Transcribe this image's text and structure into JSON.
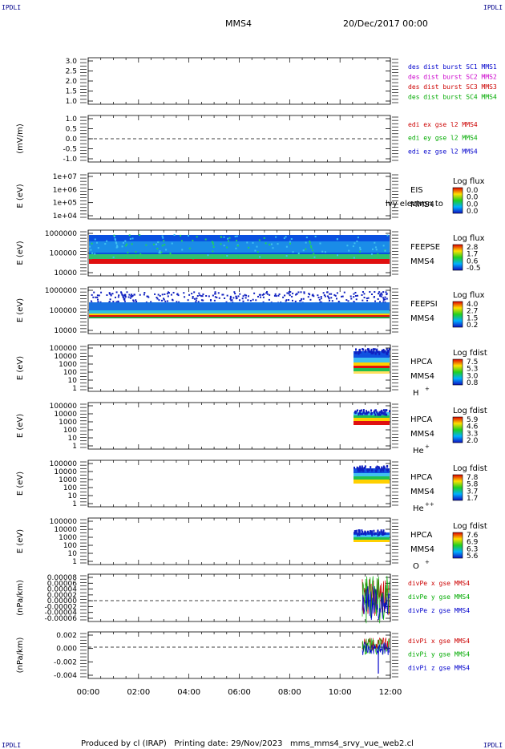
{
  "corner_label": "IPDLI",
  "header": {
    "spacecraft": "MMS4",
    "date": "20/Dec/2017 00:00"
  },
  "footer": {
    "text": "Produced by cl (IRAP)   Printing date: 29/Nov/2023   mms_mms4_srvy_vue_web2.cl"
  },
  "x_axis": {
    "ticks": [
      "00:00",
      "02:00",
      "04:00",
      "06:00",
      "08:00",
      "10:00",
      "12:00"
    ]
  },
  "chart_data": [
    {
      "type": "line",
      "id": "dist",
      "yticks": [
        "3.0",
        "2.5",
        "2.0",
        "1.5",
        "1.0"
      ],
      "legend": [
        {
          "text": "des dist burst SC1 MMS1",
          "color": "#0000cc"
        },
        {
          "text": "des dist burst SC2 MMS2",
          "color": "#cc00cc"
        },
        {
          "text": "des dist burst SC3 MMS3",
          "color": "#cc0000"
        },
        {
          "text": "des dist burst SC4 MMS4",
          "color": "#00aa00"
        }
      ]
    },
    {
      "type": "line",
      "id": "edi",
      "ylabel": "(mV/m)",
      "yticks": [
        "1.0",
        "0.5",
        "0.0",
        "-0.5",
        "-1.0"
      ],
      "legend": [
        {
          "text": "edi ex gse l2 MMS4",
          "color": "#cc0000"
        },
        {
          "text": "edi ey gse l2 MMS4",
          "color": "#00aa00"
        },
        {
          "text": "edi ez gse l2 MMS4",
          "color": "#0000cc"
        }
      ]
    },
    {
      "type": "heatmap",
      "id": "eis",
      "ylabel": "E (eV)",
      "yticks": [
        "1e+07",
        "1e+06",
        "1e+05",
        "1e+04"
      ],
      "instrument": "EIS",
      "overlay": "lvy electron to",
      "sc": "MMS4",
      "cbar_title": "Log flux",
      "cbar_ticks": [
        "0.0",
        "0.0",
        "0.0",
        "0.0"
      ]
    },
    {
      "type": "heatmap",
      "id": "feepse",
      "ylabel": "E (eV)",
      "yticks": [
        "1000000",
        "100000",
        "10000"
      ],
      "instrument": "FEEPSE",
      "sc": "MMS4",
      "cbar_title": "Log flux",
      "cbar_ticks": [
        "2.8",
        "1.7",
        "0.6",
        "-0.5"
      ]
    },
    {
      "type": "heatmap",
      "id": "feepsi",
      "ylabel": "E (eV)",
      "yticks": [
        "1000000",
        "100000",
        "10000"
      ],
      "instrument": "FEEPSI",
      "sc": "MMS4",
      "cbar_title": "Log flux",
      "cbar_ticks": [
        "4.0",
        "2.7",
        "1.5",
        "0.2"
      ]
    },
    {
      "type": "heatmap",
      "id": "hpca_h",
      "ylabel": "E (eV)",
      "yticks": [
        "100000",
        "10000",
        "1000",
        "100",
        "10",
        "1"
      ],
      "instrument": "HPCA",
      "sc": "MMS4",
      "species": "H",
      "charge": "+",
      "cbar_title": "Log fdist",
      "cbar_ticks": [
        "7.5",
        "5.3",
        "3.0",
        "0.8"
      ]
    },
    {
      "type": "heatmap",
      "id": "hpca_he",
      "ylabel": "E (eV)",
      "yticks": [
        "100000",
        "10000",
        "1000",
        "100",
        "10",
        "1"
      ],
      "instrument": "HPCA",
      "sc": "MMS4",
      "species": "He",
      "charge": "+",
      "cbar_title": "Log fdist",
      "cbar_ticks": [
        "5.9",
        "4.6",
        "3.3",
        "2.0"
      ]
    },
    {
      "type": "heatmap",
      "id": "hpca_he2",
      "ylabel": "E (eV)",
      "yticks": [
        "100000",
        "10000",
        "1000",
        "100",
        "10",
        "1"
      ],
      "instrument": "HPCA",
      "sc": "MMS4",
      "species": "He",
      "charge": "++",
      "cbar_title": "Log fdist",
      "cbar_ticks": [
        "7.8",
        "5.8",
        "3.7",
        "1.7"
      ]
    },
    {
      "type": "heatmap",
      "id": "hpca_o",
      "ylabel": "E (eV)",
      "yticks": [
        "100000",
        "10000",
        "1000",
        "100",
        "10",
        "1"
      ],
      "instrument": "HPCA",
      "sc": "MMS4",
      "species": "O",
      "charge": "+",
      "cbar_title": "Log fdist",
      "cbar_ticks": [
        "7.6",
        "6.9",
        "6.3",
        "5.6"
      ]
    },
    {
      "type": "line",
      "id": "divpe",
      "ylabel": "(nPa/km)",
      "yticks": [
        "0.00008",
        "0.00006",
        "0.00004",
        "0.00002",
        "0.00000",
        "-0.00002",
        "-0.00004",
        "-0.00006"
      ],
      "legend": [
        {
          "text": "divPe x gse MMS4",
          "color": "#cc0000"
        },
        {
          "text": "divPe y gse MMS4",
          "color": "#00aa00"
        },
        {
          "text": "divPe z gse MMS4",
          "color": "#0000cc"
        }
      ]
    },
    {
      "type": "line",
      "id": "divpi",
      "ylabel": "(nPa/km)",
      "yticks": [
        "0.002",
        "0.000",
        "-0.002",
        "-0.004"
      ],
      "legend": [
        {
          "text": "divPi x gse MMS4",
          "color": "#cc0000"
        },
        {
          "text": "divPi y gse MMS4",
          "color": "#00aa00"
        },
        {
          "text": "divPi z gse MMS4",
          "color": "#0000cc"
        }
      ]
    }
  ]
}
